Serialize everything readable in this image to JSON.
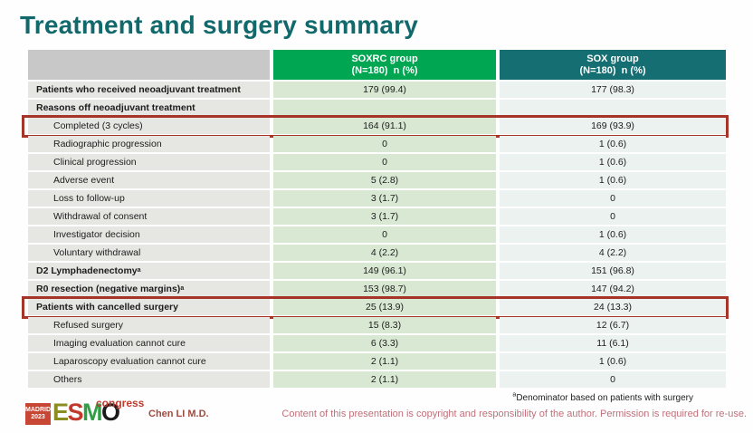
{
  "slide": {
    "title": "Treatment and surgery summary"
  },
  "table": {
    "columns": [
      {
        "name": "SOXRC group",
        "sub": "(N=180)  n (%)"
      },
      {
        "name": "SOX group",
        "sub": "(N=180)  n (%)"
      }
    ],
    "rows": [
      {
        "label": "Patients who received neoadjuvant treatment",
        "bold": true,
        "indent": false,
        "soxrc": "179 (99.4)",
        "sox": "177 (98.3)"
      },
      {
        "label": "Reasons off neoadjuvant treatment",
        "bold": true,
        "indent": false,
        "soxrc": "",
        "sox": ""
      },
      {
        "label": "Completed (3 cycles)",
        "bold": false,
        "indent": true,
        "soxrc": "164 (91.1)",
        "sox": "169 (93.9)",
        "highlight": true
      },
      {
        "label": "Radiographic progression",
        "bold": false,
        "indent": true,
        "soxrc": "0",
        "sox": "1 (0.6)"
      },
      {
        "label": "Clinical progression",
        "bold": false,
        "indent": true,
        "soxrc": "0",
        "sox": "1 (0.6)"
      },
      {
        "label": "Adverse event",
        "bold": false,
        "indent": true,
        "soxrc": "5 (2.8)",
        "sox": "1 (0.6)"
      },
      {
        "label": "Loss to follow-up",
        "bold": false,
        "indent": true,
        "soxrc": "3 (1.7)",
        "sox": "0"
      },
      {
        "label": "Withdrawal of consent",
        "bold": false,
        "indent": true,
        "soxrc": "3 (1.7)",
        "sox": "0"
      },
      {
        "label": "Investigator decision",
        "bold": false,
        "indent": true,
        "soxrc": "0",
        "sox": "1 (0.6)"
      },
      {
        "label": "Voluntary withdrawal",
        "bold": false,
        "indent": true,
        "soxrc": "4 (2.2)",
        "sox": "4 (2.2)"
      },
      {
        "label": "D2 Lymphadenectomy",
        "sup": "a",
        "bold": true,
        "indent": false,
        "soxrc": "149 (96.1)",
        "sox": "151 (96.8)"
      },
      {
        "label": "R0 resection (negative margins)",
        "sup": "a",
        "bold": true,
        "indent": false,
        "soxrc": "153 (98.7)",
        "sox": "147 (94.2)"
      },
      {
        "label": "Patients with cancelled surgery",
        "bold": true,
        "indent": false,
        "soxrc": "25 (13.9)",
        "sox": "24 (13.3)",
        "highlight": true
      },
      {
        "label": "Refused surgery",
        "bold": false,
        "indent": true,
        "soxrc": "15 (8.3)",
        "sox": "12 (6.7)"
      },
      {
        "label": "Imaging evaluation cannot cure",
        "bold": false,
        "indent": true,
        "soxrc": "6 (3.3)",
        "sox": "11 (6.1)"
      },
      {
        "label": "Laparoscopy evaluation cannot cure",
        "bold": false,
        "indent": true,
        "soxrc": "2 (1.1)",
        "sox": "1 (0.6)"
      },
      {
        "label": "Others",
        "bold": false,
        "indent": true,
        "soxrc": "2 (1.1)",
        "sox": "0"
      }
    ]
  },
  "footer": {
    "logo": {
      "location": "MADRID",
      "year": "2023",
      "letters": [
        {
          "ch": "E",
          "color": "#8B8D20"
        },
        {
          "ch": "S",
          "color": "#C0392B"
        },
        {
          "ch": "M",
          "color": "#2F9E44"
        },
        {
          "ch": "O",
          "color": "#1A1A1A"
        }
      ],
      "congress": "congress"
    },
    "author": "Chen LI M.D.",
    "footnote_sup": "a",
    "footnote": "Denominator based on patients with surgery",
    "copyright": "Content of this presentation is copyright and responsibility of the author. Permission is required for re-use."
  },
  "colors": {
    "title": "#11696C",
    "header_green": "#00A651",
    "header_teal": "#156E72",
    "label_header_gray": "#C8C8C8",
    "label_cell": "#E6E6E3",
    "soxrc_cell": "#D9E8D3",
    "sox_cell": "#EBF2F0",
    "highlight_red": "#A63428"
  }
}
